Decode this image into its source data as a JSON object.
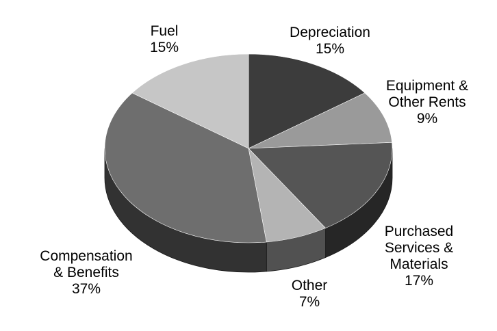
{
  "chart_data": {
    "type": "pie",
    "title": "",
    "slices": [
      {
        "label_lines": [
          "Depreciation"
        ],
        "pct_label": "15%",
        "value": 15,
        "color": "#3c3c3c"
      },
      {
        "label_lines": [
          "Equipment &",
          "Other Rents"
        ],
        "pct_label": "9%",
        "value": 9,
        "color": "#9a9a9a"
      },
      {
        "label_lines": [
          "Purchased",
          "Services &",
          "Materials"
        ],
        "pct_label": "17%",
        "value": 17,
        "color": "#555555"
      },
      {
        "label_lines": [
          "Other"
        ],
        "pct_label": "7%",
        "value": 7,
        "color": "#b4b4b4"
      },
      {
        "label_lines": [
          "Compensation",
          "& Benefits"
        ],
        "pct_label": "37%",
        "value": 37,
        "color": "#6e6e6e"
      },
      {
        "label_lines": [
          "Fuel"
        ],
        "pct_label": "15%",
        "value": 15,
        "color": "#c6c6c6"
      }
    ],
    "style": "3d-tilted",
    "legend": "none"
  }
}
